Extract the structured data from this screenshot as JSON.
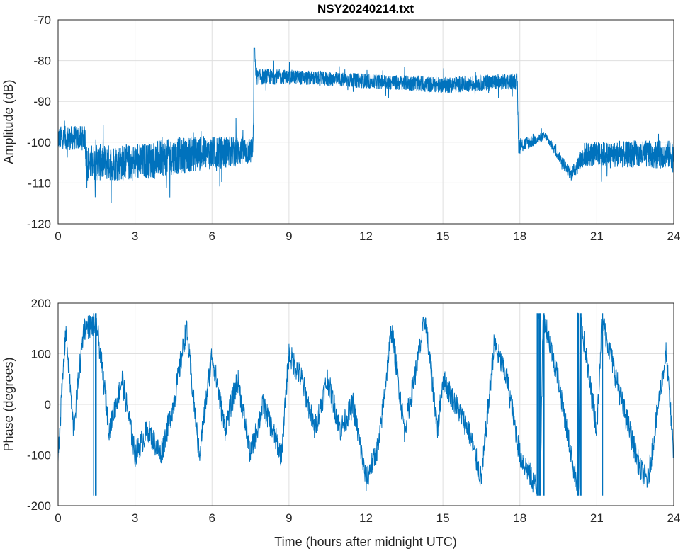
{
  "chart_data": [
    {
      "type": "line",
      "title": "NSY20240214.txt",
      "xlabel": "",
      "ylabel": "Amplitude (dB)",
      "xlim": [
        0,
        24
      ],
      "ylim": [
        -120,
        -70
      ],
      "xticks": [
        "0",
        "3",
        "6",
        "9",
        "12",
        "15",
        "18",
        "21",
        "24"
      ],
      "yticks": [
        "-70",
        "-80",
        "-90",
        "-100",
        "-110",
        "-120"
      ],
      "grid": true,
      "color": "#0072BD",
      "series": [
        {
          "name": "amplitude",
          "keypoints_hour_center_noise": [
            [
              0,
              -99,
              3
            ],
            [
              1.05,
              -99,
              3
            ],
            [
              1.1,
              -105,
              4.5
            ],
            [
              3,
              -105,
              4.5
            ],
            [
              5,
              -103,
              4.5
            ],
            [
              7.6,
              -102,
              3.5
            ],
            [
              7.65,
              -80,
              2
            ],
            [
              7.75,
              -84,
              2
            ],
            [
              9,
              -84,
              1.8
            ],
            [
              12,
              -85,
              1.8
            ],
            [
              15,
              -86,
              2
            ],
            [
              17.9,
              -85,
              2
            ],
            [
              17.95,
              -101,
              2
            ],
            [
              19,
              -98.5,
              1
            ],
            [
              20,
              -108,
              1.5
            ],
            [
              20.5,
              -103,
              3
            ],
            [
              24,
              -103,
              3.5
            ]
          ]
        }
      ]
    },
    {
      "type": "line",
      "title": "",
      "xlabel": "Time (hours after midnight UTC)",
      "ylabel": "Phase (degrees)",
      "xlim": [
        0,
        24
      ],
      "ylim": [
        -200,
        200
      ],
      "xticks": [
        "0",
        "3",
        "6",
        "9",
        "12",
        "15",
        "18",
        "21",
        "24"
      ],
      "yticks": [
        "200",
        "100",
        "0",
        "-100",
        "-200"
      ],
      "grid": true,
      "color": "#0072BD",
      "series": [
        {
          "name": "phase",
          "keypoints_hour_degrees": [
            [
              0,
              -100
            ],
            [
              0.3,
              150
            ],
            [
              0.6,
              -50
            ],
            [
              1,
              150
            ],
            [
              1.5,
              160
            ],
            [
              2,
              -50
            ],
            [
              2.5,
              50
            ],
            [
              3,
              -100
            ],
            [
              3.5,
              -50
            ],
            [
              4,
              -100
            ],
            [
              4.5,
              0
            ],
            [
              5,
              150
            ],
            [
              5.5,
              -100
            ],
            [
              6,
              100
            ],
            [
              6.5,
              -50
            ],
            [
              7,
              50
            ],
            [
              7.5,
              -100
            ],
            [
              8,
              0
            ],
            [
              8.7,
              -100
            ],
            [
              9,
              100
            ],
            [
              9.5,
              50
            ],
            [
              10,
              -50
            ],
            [
              10.5,
              50
            ],
            [
              11,
              -50
            ],
            [
              11.5,
              0
            ],
            [
              12,
              -150
            ],
            [
              12.5,
              -80
            ],
            [
              13,
              150
            ],
            [
              13.5,
              -50
            ],
            [
              14,
              80
            ],
            [
              14.3,
              170
            ],
            [
              14.8,
              -50
            ],
            [
              15,
              50
            ],
            [
              15.5,
              0
            ],
            [
              16,
              -50
            ],
            [
              16.5,
              -150
            ],
            [
              17,
              120
            ],
            [
              17.5,
              50
            ],
            [
              18,
              -100
            ],
            [
              18.8,
              -180
            ],
            [
              18.9,
              180
            ],
            [
              19.5,
              50
            ],
            [
              20,
              -100
            ],
            [
              20.3,
              -180
            ],
            [
              20.35,
              180
            ],
            [
              20.7,
              50
            ],
            [
              21,
              -50
            ],
            [
              21.2,
              170
            ],
            [
              22,
              0
            ],
            [
              22.7,
              -130
            ],
            [
              23,
              -150
            ],
            [
              23.4,
              0
            ],
            [
              23.7,
              100
            ],
            [
              24,
              -100
            ]
          ],
          "wrap": [
            -180,
            180
          ]
        }
      ]
    }
  ]
}
